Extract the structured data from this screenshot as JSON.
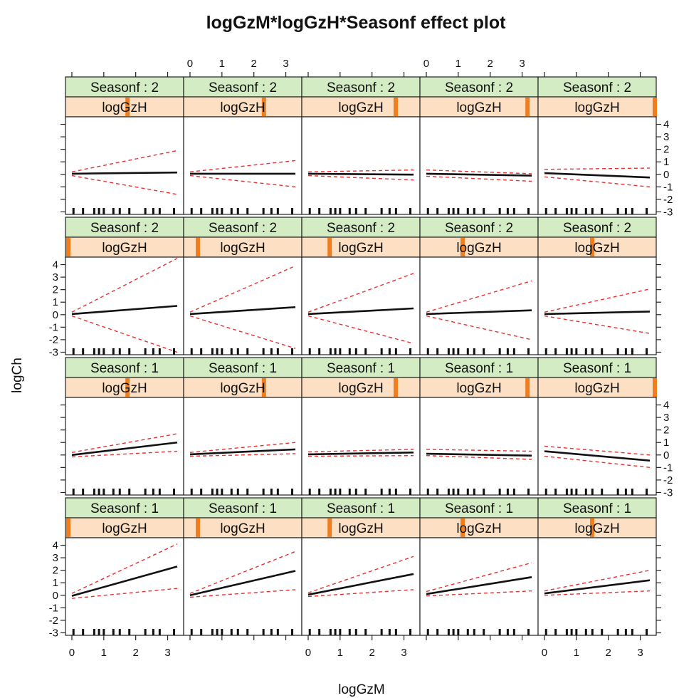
{
  "chart_data": {
    "type": "line",
    "title": "logGzM*logGzH*Seasonf effect plot",
    "xlabel": "logGzM",
    "ylabel": "logCh",
    "xlim": [
      -0.2,
      3.5
    ],
    "ylim": [
      -3.2,
      4.6
    ],
    "x_ticks": [
      "0",
      "1",
      "2",
      "3"
    ],
    "y_ticks": [
      "-3",
      "-2",
      "-1",
      "0",
      "1",
      "2",
      "3",
      "4"
    ],
    "grid": false,
    "strip_season_prefix": "Seasonf : ",
    "strip_var_label": "logGzH",
    "x_range": [
      0,
      3.3
    ],
    "rug": [
      0.05,
      0.35,
      0.7,
      0.85,
      1.0,
      1.3,
      1.5,
      1.8,
      2.3,
      2.55,
      2.75,
      3.2
    ],
    "panels": [
      {
        "row": 1,
        "col": 1,
        "season": "2",
        "logGzH_pos": 0.52,
        "fit": [
          0.05,
          0.15
        ],
        "upper": [
          0.2,
          1.9
        ],
        "lower": [
          -0.1,
          -1.6
        ]
      },
      {
        "row": 1,
        "col": 2,
        "season": "2",
        "logGzH_pos": 0.68,
        "fit": [
          0.05,
          0.05
        ],
        "upper": [
          0.2,
          1.1
        ],
        "lower": [
          -0.1,
          -1.0
        ]
      },
      {
        "row": 1,
        "col": 3,
        "season": "2",
        "logGzH_pos": 0.8,
        "fit": [
          0.05,
          -0.02
        ],
        "upper": [
          0.2,
          0.35
        ],
        "lower": [
          -0.1,
          -0.45
        ]
      },
      {
        "row": 1,
        "col": 4,
        "season": "2",
        "logGzH_pos": 0.92,
        "fit": [
          0.05,
          -0.1
        ],
        "upper": [
          0.35,
          0.05
        ],
        "lower": [
          -0.15,
          -0.55
        ]
      },
      {
        "row": 1,
        "col": 5,
        "season": "2",
        "logGzH_pos": 1.0,
        "fit": [
          0.1,
          -0.25
        ],
        "upper": [
          0.4,
          0.5
        ],
        "lower": [
          -0.2,
          -1.0
        ]
      },
      {
        "row": 2,
        "col": 1,
        "season": "2",
        "logGzH_pos": 0.0,
        "fit": [
          0.05,
          0.7
        ],
        "upper": [
          0.2,
          4.5
        ],
        "lower": [
          -0.1,
          -3.0
        ]
      },
      {
        "row": 2,
        "col": 2,
        "season": "2",
        "logGzH_pos": 0.1,
        "fit": [
          0.05,
          0.6
        ],
        "upper": [
          0.2,
          3.9
        ],
        "lower": [
          -0.1,
          -2.7
        ]
      },
      {
        "row": 2,
        "col": 3,
        "season": "2",
        "logGzH_pos": 0.22,
        "fit": [
          0.05,
          0.5
        ],
        "upper": [
          0.2,
          3.3
        ],
        "lower": [
          -0.1,
          -2.3
        ]
      },
      {
        "row": 2,
        "col": 4,
        "season": "2",
        "logGzH_pos": 0.35,
        "fit": [
          0.05,
          0.35
        ],
        "upper": [
          0.2,
          2.7
        ],
        "lower": [
          -0.1,
          -2.0
        ]
      },
      {
        "row": 2,
        "col": 5,
        "season": "2",
        "logGzH_pos": 0.45,
        "fit": [
          0.05,
          0.25
        ],
        "upper": [
          0.2,
          2.05
        ],
        "lower": [
          -0.1,
          -1.5
        ]
      },
      {
        "row": 3,
        "col": 1,
        "season": "1",
        "logGzH_pos": 0.52,
        "fit": [
          0.0,
          1.0
        ],
        "upper": [
          0.2,
          1.7
        ],
        "lower": [
          -0.15,
          0.3
        ]
      },
      {
        "row": 3,
        "col": 2,
        "season": "1",
        "logGzH_pos": 0.68,
        "fit": [
          0.05,
          0.45
        ],
        "upper": [
          0.2,
          1.0
        ],
        "lower": [
          -0.1,
          0.1
        ]
      },
      {
        "row": 3,
        "col": 3,
        "season": "1",
        "logGzH_pos": 0.8,
        "fit": [
          0.05,
          0.2
        ],
        "upper": [
          0.25,
          0.45
        ],
        "lower": [
          -0.1,
          -0.05
        ]
      },
      {
        "row": 3,
        "col": 4,
        "season": "1",
        "logGzH_pos": 0.92,
        "fit": [
          0.1,
          -0.05
        ],
        "upper": [
          0.45,
          0.3
        ],
        "lower": [
          -0.05,
          -0.35
        ]
      },
      {
        "row": 3,
        "col": 5,
        "season": "1",
        "logGzH_pos": 1.0,
        "fit": [
          0.3,
          -0.45
        ],
        "upper": [
          0.7,
          0.0
        ],
        "lower": [
          -0.1,
          -1.0
        ]
      },
      {
        "row": 4,
        "col": 1,
        "season": "1",
        "logGzH_pos": 0.0,
        "fit": [
          -0.05,
          2.3
        ],
        "upper": [
          0.15,
          4.1
        ],
        "lower": [
          -0.25,
          0.55
        ]
      },
      {
        "row": 4,
        "col": 2,
        "season": "1",
        "logGzH_pos": 0.1,
        "fit": [
          0.0,
          1.95
        ],
        "upper": [
          0.15,
          3.5
        ],
        "lower": [
          -0.15,
          0.45
        ]
      },
      {
        "row": 4,
        "col": 3,
        "season": "1",
        "logGzH_pos": 0.22,
        "fit": [
          0.05,
          1.7
        ],
        "upper": [
          0.2,
          3.1
        ],
        "lower": [
          -0.1,
          0.45
        ]
      },
      {
        "row": 4,
        "col": 4,
        "season": "1",
        "logGzH_pos": 0.35,
        "fit": [
          0.1,
          1.45
        ],
        "upper": [
          0.3,
          2.6
        ],
        "lower": [
          -0.05,
          0.35
        ]
      },
      {
        "row": 4,
        "col": 5,
        "season": "1",
        "logGzH_pos": 0.45,
        "fit": [
          0.15,
          1.2
        ],
        "upper": [
          0.35,
          2.0
        ],
        "lower": [
          0.0,
          0.35
        ]
      }
    ]
  }
}
